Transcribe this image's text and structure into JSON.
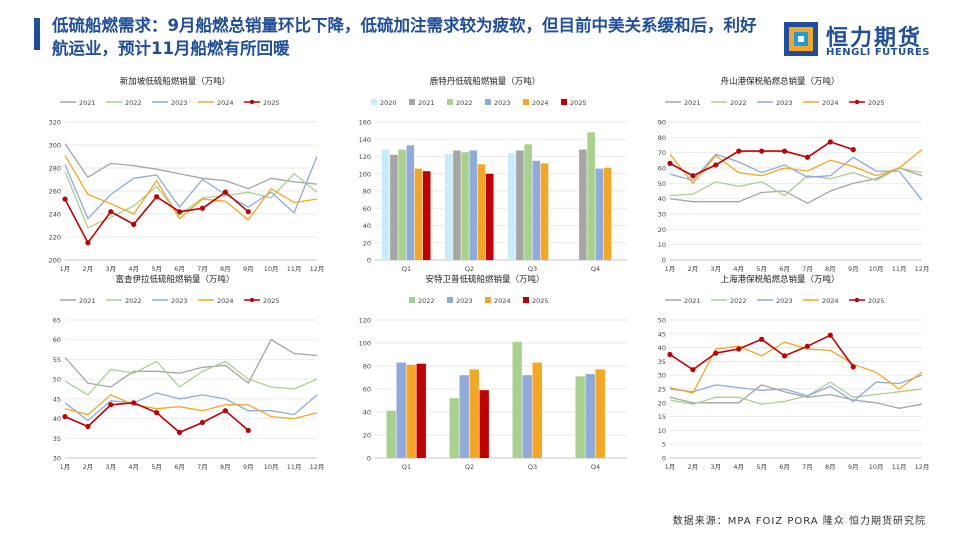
{
  "title": "低硫船燃需求：9月船燃总销量环比下降，低硫加注需求较为疲软，但目前中美关系缓和后，利好航运业，预计11月船燃有所回暖",
  "logo": {
    "cn": "恒力期货",
    "en": "HENGLI FUTURES"
  },
  "source": "数据来源：MPA FOIZ PORA 隆众 恒力期货研究院",
  "colors": {
    "accent": "#1f4e9c",
    "s2020": "#c9ecfa",
    "s2021": "#a6a6a6",
    "s2022": "#a9d18e",
    "s2023": "#8faadc",
    "s2024": "#f5a623",
    "s2025": "#c00000"
  },
  "chart_data": [
    {
      "id": "singapore",
      "type": "line",
      "title": "新加坡低硫船燃销量（万吨）",
      "categories": [
        "1月",
        "2月",
        "3月",
        "4月",
        "5月",
        "6月",
        "7月",
        "8月",
        "9月",
        "10月",
        "11月",
        "12月"
      ],
      "ylim": [
        200,
        320
      ],
      "yticks": [
        200,
        220,
        240,
        260,
        280,
        300,
        320
      ],
      "series": [
        {
          "name": "2021",
          "color": "#a6a6a6",
          "values": [
            301,
            272,
            284,
            282,
            279,
            275,
            271,
            269,
            262,
            271,
            268,
            266
          ]
        },
        {
          "name": "2022",
          "color": "#a9d18e",
          "values": [
            277,
            228,
            237,
            247,
            264,
            239,
            254,
            256,
            259,
            254,
            275,
            259
          ]
        },
        {
          "name": "2023",
          "color": "#8faadc",
          "values": [
            283,
            236,
            257,
            271,
            274,
            246,
            270,
            257,
            246,
            259,
            241,
            290
          ]
        },
        {
          "name": "2024",
          "color": "#f5a623",
          "values": [
            291,
            257,
            249,
            240,
            269,
            236,
            253,
            251,
            235,
            262,
            250,
            253
          ]
        },
        {
          "name": "2025",
          "color": "#c00000",
          "values": [
            253,
            215,
            242,
            231,
            255,
            242,
            245,
            259,
            242,
            null,
            null,
            null
          ]
        }
      ]
    },
    {
      "id": "fujairah",
      "type": "bar",
      "title": "鹿特丹低硫船燃销量（万吨）",
      "categories": [
        "Q1",
        "Q2",
        "Q3",
        "Q4"
      ],
      "ylim": [
        0,
        160
      ],
      "yticks": [
        0,
        20,
        40,
        60,
        80,
        100,
        120,
        140,
        160
      ],
      "series": [
        {
          "name": "2020",
          "color": "#c9ecfa",
          "values": [
            128,
            123,
            124,
            null
          ]
        },
        {
          "name": "2021",
          "color": "#a6a6a6",
          "values": [
            122,
            127,
            127,
            128
          ]
        },
        {
          "name": "2022",
          "color": "#a9d18e",
          "values": [
            128,
            125,
            134,
            148
          ]
        },
        {
          "name": "2023",
          "color": "#8faadc",
          "values": [
            133,
            127,
            115,
            106
          ]
        },
        {
          "name": "2024",
          "color": "#f5a623",
          "values": [
            106,
            111,
            112,
            107
          ]
        },
        {
          "name": "2025",
          "color": "#c00000",
          "values": [
            103,
            100,
            null,
            null
          ]
        }
      ]
    },
    {
      "id": "zhoushan",
      "type": "line",
      "title": "舟山港保税船燃总销量（万吨）",
      "categories": [
        "1月",
        "2月",
        "3月",
        "4月",
        "5月",
        "6月",
        "7月",
        "8月",
        "9月",
        "10月",
        "11月",
        "12月"
      ],
      "ylim": [
        0,
        90
      ],
      "yticks": [
        0,
        10,
        20,
        30,
        40,
        50,
        60,
        70,
        80,
        90
      ],
      "series": [
        {
          "name": "2021",
          "color": "#a6a6a6",
          "values": [
            40,
            38,
            38,
            38,
            44,
            45,
            37,
            45,
            50,
            53,
            60,
            55
          ]
        },
        {
          "name": "2022",
          "color": "#a9d18e",
          "values": [
            42,
            43,
            51,
            48,
            51,
            42,
            55,
            53,
            57,
            52,
            60,
            57
          ]
        },
        {
          "name": "2023",
          "color": "#8faadc",
          "values": [
            56,
            52,
            69,
            64,
            57,
            62,
            54,
            55,
            67,
            58,
            58,
            39
          ]
        },
        {
          "name": "2024",
          "color": "#f5a623",
          "values": [
            69,
            50,
            68,
            57,
            55,
            60,
            58,
            65,
            61,
            55,
            60,
            72
          ]
        },
        {
          "name": "2025",
          "color": "#c00000",
          "values": [
            63,
            55,
            62,
            71,
            71,
            71,
            67,
            77,
            72,
            null,
            null,
            null
          ]
        }
      ]
    },
    {
      "id": "fujairah2",
      "type": "line",
      "title": "富查伊拉低硫船燃销量（万吨）",
      "categories": [
        "1月",
        "2月",
        "3月",
        "4月",
        "5月",
        "6月",
        "7月",
        "8月",
        "9月",
        "10月",
        "11月",
        "12月"
      ],
      "ylim": [
        30,
        65
      ],
      "yticks": [
        30,
        35,
        40,
        45,
        50,
        55,
        60,
        65
      ],
      "series": [
        {
          "name": "2021",
          "color": "#a6a6a6",
          "values": [
            55.5,
            49,
            48,
            52,
            52,
            51.5,
            53,
            53.5,
            49,
            60,
            56.5,
            56
          ]
        },
        {
          "name": "2022",
          "color": "#a9d18e",
          "values": [
            49.5,
            46,
            52.5,
            51.5,
            54.5,
            48,
            52,
            54.5,
            50,
            48,
            47.5,
            50
          ]
        },
        {
          "name": "2023",
          "color": "#8faadc",
          "values": [
            44,
            39.5,
            44.5,
            44,
            46.5,
            45,
            46,
            45,
            42,
            42,
            41,
            46
          ]
        },
        {
          "name": "2024",
          "color": "#f5a623",
          "values": [
            42.5,
            41,
            46,
            43.5,
            42.5,
            43,
            42,
            43.5,
            43.5,
            40.5,
            40,
            41.5
          ]
        },
        {
          "name": "2025",
          "color": "#c00000",
          "values": [
            40.5,
            38,
            43.5,
            44,
            41.5,
            36.5,
            39,
            42,
            37,
            null,
            null,
            null
          ]
        }
      ]
    },
    {
      "id": "antwerp",
      "type": "bar",
      "title": "安特卫普低硫船燃销量（万吨）",
      "categories": [
        "Q1",
        "Q2",
        "Q3",
        "Q4"
      ],
      "ylim": [
        0,
        120
      ],
      "yticks": [
        0,
        20,
        40,
        60,
        80,
        100,
        120
      ],
      "series": [
        {
          "name": "2022",
          "color": "#a9d18e",
          "values": [
            41,
            52,
            101,
            71
          ]
        },
        {
          "name": "2023",
          "color": "#8faadc",
          "values": [
            83,
            72,
            72,
            73
          ]
        },
        {
          "name": "2024",
          "color": "#f5a623",
          "values": [
            81,
            77,
            83,
            77
          ]
        },
        {
          "name": "2025",
          "color": "#c00000",
          "values": [
            82,
            59,
            null,
            null
          ]
        }
      ]
    },
    {
      "id": "shanghai",
      "type": "line",
      "title": "上海港保税船燃总销量（万吨）",
      "categories": [
        "1月",
        "2月",
        "3月",
        "4月",
        "5月",
        "6月",
        "7月",
        "8月",
        "9月",
        "10月",
        "11月",
        "12月"
      ],
      "ylim": [
        0,
        50
      ],
      "yticks": [
        0,
        5,
        10,
        15,
        20,
        25,
        30,
        35,
        40,
        45,
        50
      ],
      "series": [
        {
          "name": "2021",
          "color": "#a6a6a6",
          "values": [
            22,
            20,
            20,
            20,
            26.5,
            24,
            22,
            23,
            21,
            20,
            18,
            19.5
          ]
        },
        {
          "name": "2022",
          "color": "#a9d18e",
          "values": [
            21,
            19.5,
            22,
            22,
            19.5,
            20.5,
            22.5,
            27.5,
            22,
            23,
            24,
            25
          ]
        },
        {
          "name": "2023",
          "color": "#8faadc",
          "values": [
            25,
            24,
            26.5,
            25.5,
            24.5,
            25,
            22.5,
            26,
            20.5,
            27.5,
            27,
            30
          ]
        },
        {
          "name": "2024",
          "color": "#f5a623",
          "values": [
            25.5,
            23.5,
            39.5,
            40.5,
            37,
            42,
            39.5,
            39,
            34,
            31,
            25,
            31
          ]
        },
        {
          "name": "2025",
          "color": "#c00000",
          "values": [
            37.5,
            32,
            38,
            39.5,
            43,
            37,
            40.5,
            44.5,
            33,
            null,
            null,
            null
          ]
        }
      ]
    }
  ]
}
